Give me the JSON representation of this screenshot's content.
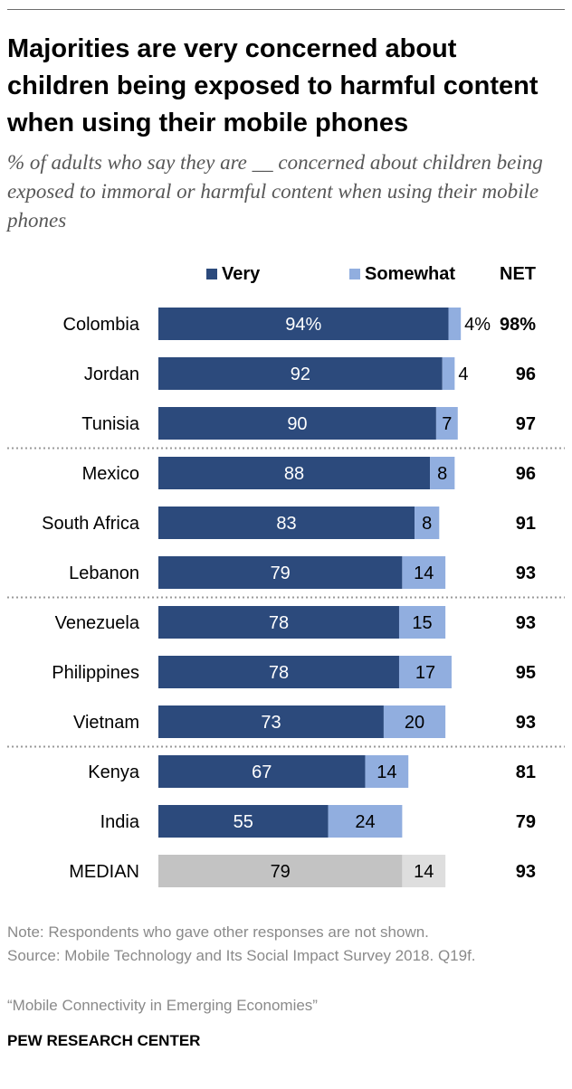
{
  "header": {
    "title": "Majorities are very concerned about children being exposed to harmful content when using their mobile phones",
    "subtitle": "% of adults who say they are __ concerned about children being exposed to immoral or harmful content when using their mobile phones"
  },
  "legend": {
    "very": "Very",
    "somewhat": "Somewhat",
    "net": "NET"
  },
  "colors": {
    "very": "#2c4a7c",
    "somewhat": "#91aedf",
    "median_very": "#c3c3c3",
    "median_somewhat": "#dedede",
    "divider": "#9a9a9a"
  },
  "chart_data": {
    "type": "bar",
    "orientation": "horizontal",
    "stacked": true,
    "categories": [
      "Colombia",
      "Jordan",
      "Tunisia",
      "Mexico",
      "South Africa",
      "Lebanon",
      "Venezuela",
      "Philippines",
      "Vietnam",
      "Kenya",
      "India",
      "MEDIAN"
    ],
    "series": [
      {
        "name": "Very",
        "values": [
          94,
          92,
          90,
          88,
          83,
          79,
          78,
          78,
          73,
          67,
          55,
          79
        ],
        "labels": [
          "94%",
          "92",
          "90",
          "88",
          "83",
          "79",
          "78",
          "78",
          "73",
          "67",
          "55",
          "79"
        ]
      },
      {
        "name": "Somewhat",
        "values": [
          4,
          4,
          7,
          8,
          8,
          14,
          15,
          17,
          20,
          14,
          24,
          14
        ],
        "labels": [
          "4%",
          "4",
          "7",
          "8",
          "8",
          "14",
          "15",
          "17",
          "20",
          "14",
          "24",
          "14"
        ]
      }
    ],
    "net": [
      "98%",
      "96",
      "97",
      "96",
      "91",
      "93",
      "93",
      "95",
      "93",
      "81",
      "79",
      "93"
    ],
    "group_breaks_after": [
      2,
      5,
      8
    ],
    "xlim": [
      0,
      100
    ],
    "legend_position": "top"
  },
  "footer": {
    "note": "Note: Respondents who gave other responses are not shown.",
    "source": "Source: Mobile Technology and Its Social Impact Survey 2018. Q19f.",
    "report": "“Mobile Connectivity in Emerging Economies”",
    "brand": "PEW RESEARCH CENTER"
  }
}
